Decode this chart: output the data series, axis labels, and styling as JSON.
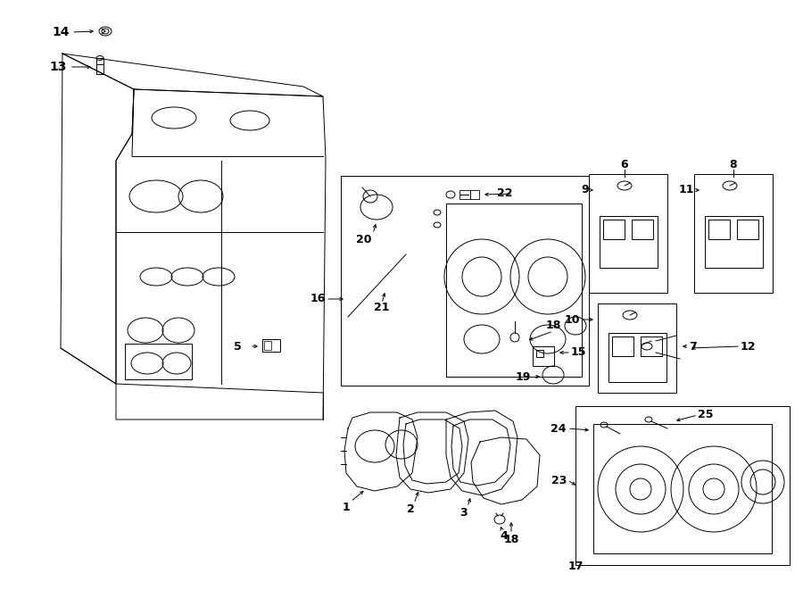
{
  "background": "#ffffff",
  "line_color": "#000000",
  "text_color": "#000000",
  "fig_width": 9.0,
  "fig_height": 6.61,
  "dpi": 100
}
